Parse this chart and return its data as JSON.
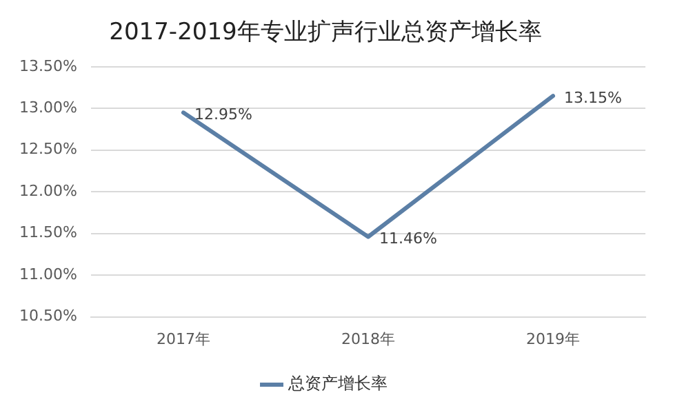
{
  "chart_data": {
    "type": "line",
    "title": "2017-2019年专业扩声行业总资产增长率",
    "categories": [
      "2017年",
      "2018年",
      "2019年"
    ],
    "series": [
      {
        "name": "总资产增长率",
        "color": "#5b7fa6",
        "values": [
          12.95,
          11.46,
          13.15
        ],
        "value_labels": [
          "12.95%",
          "11.46%",
          "13.15%"
        ]
      }
    ],
    "ylim": [
      10.5,
      13.5
    ],
    "yticks": [
      {
        "value": 10.5,
        "label": "10.50%"
      },
      {
        "value": 11,
        "label": "11.00%"
      },
      {
        "value": 11.5,
        "label": "11.50%"
      },
      {
        "value": 12,
        "label": "12.00%"
      },
      {
        "value": 12.5,
        "label": "12.50%"
      },
      {
        "value": 13,
        "label": "13.00%"
      },
      {
        "value": 13.5,
        "label": "13.50%"
      }
    ],
    "grid": "y",
    "legend": "bottom",
    "marker": "none",
    "line_style": "solid"
  }
}
